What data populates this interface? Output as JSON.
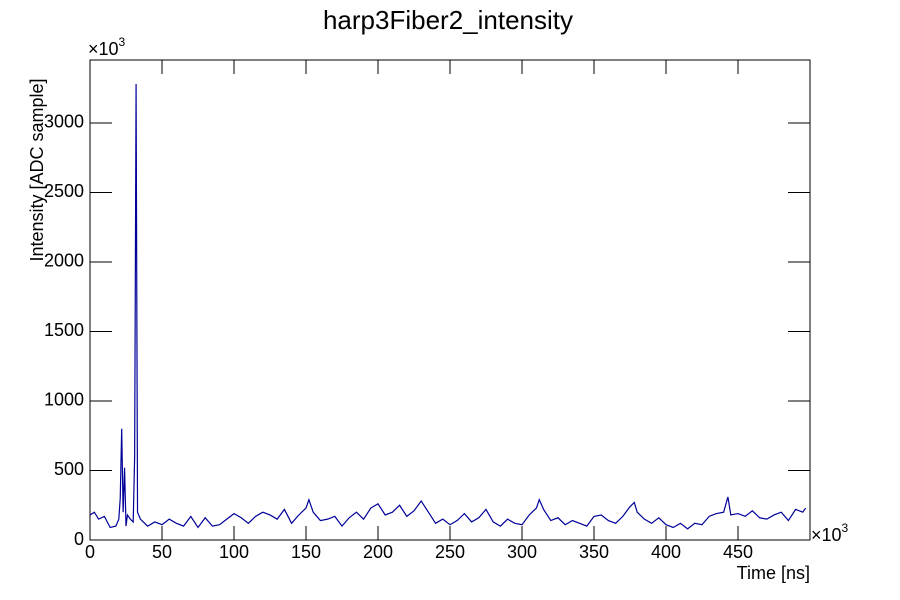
{
  "chart_data": {
    "type": "line",
    "title": "harp3Fiber2_intensity",
    "x_label": "Time [ns]",
    "y_label": "Intensity [ADC sample]",
    "x_multiplier": {
      "base": "×10",
      "exponent": "3"
    },
    "y_multiplier": {
      "base": "×10",
      "exponent": "3"
    },
    "xlim": [
      0,
      500
    ],
    "ylim": [
      0,
      3453
    ],
    "xticks": [
      0,
      50,
      100,
      150,
      200,
      250,
      300,
      350,
      400,
      450
    ],
    "yticks": [
      0,
      500,
      1000,
      1500,
      2000,
      2500,
      3000
    ],
    "x": [
      0,
      3,
      6,
      10,
      14,
      18,
      20,
      21,
      22,
      23,
      24,
      25,
      26,
      28,
      30,
      31,
      32,
      33,
      35,
      40,
      45,
      50,
      55,
      60,
      65,
      70,
      75,
      80,
      85,
      90,
      95,
      100,
      105,
      110,
      115,
      120,
      125,
      130,
      135,
      140,
      145,
      150,
      152,
      155,
      160,
      165,
      170,
      175,
      180,
      185,
      190,
      195,
      200,
      205,
      210,
      215,
      220,
      225,
      230,
      235,
      240,
      245,
      250,
      255,
      260,
      265,
      270,
      275,
      280,
      285,
      290,
      295,
      300,
      305,
      310,
      312,
      315,
      320,
      325,
      330,
      335,
      340,
      345,
      350,
      355,
      360,
      365,
      370,
      375,
      378,
      380,
      385,
      390,
      395,
      400,
      405,
      410,
      415,
      420,
      425,
      430,
      435,
      440,
      443,
      445,
      450,
      455,
      460,
      465,
      470,
      475,
      480,
      485,
      490,
      495,
      497
    ],
    "series": [
      {
        "name": "harp3Fiber2_intensity",
        "color": "#000099",
        "values": [
          180,
          200,
          150,
          170,
          90,
          100,
          150,
          300,
          800,
          200,
          520,
          100,
          180,
          150,
          130,
          600,
          3280,
          200,
          150,
          100,
          130,
          110,
          150,
          120,
          100,
          170,
          90,
          160,
          100,
          110,
          150,
          190,
          160,
          120,
          170,
          200,
          180,
          150,
          220,
          120,
          180,
          230,
          290,
          200,
          140,
          150,
          170,
          100,
          160,
          200,
          150,
          230,
          260,
          180,
          200,
          250,
          170,
          210,
          280,
          200,
          120,
          150,
          110,
          140,
          190,
          130,
          160,
          220,
          130,
          100,
          150,
          120,
          110,
          180,
          230,
          290,
          220,
          140,
          160,
          110,
          140,
          120,
          100,
          170,
          180,
          140,
          120,
          170,
          240,
          270,
          200,
          150,
          120,
          160,
          110,
          90,
          120,
          80,
          120,
          110,
          170,
          190,
          200,
          310,
          180,
          190,
          170,
          210,
          160,
          150,
          180,
          200,
          140,
          220,
          200,
          230
        ]
      }
    ]
  }
}
